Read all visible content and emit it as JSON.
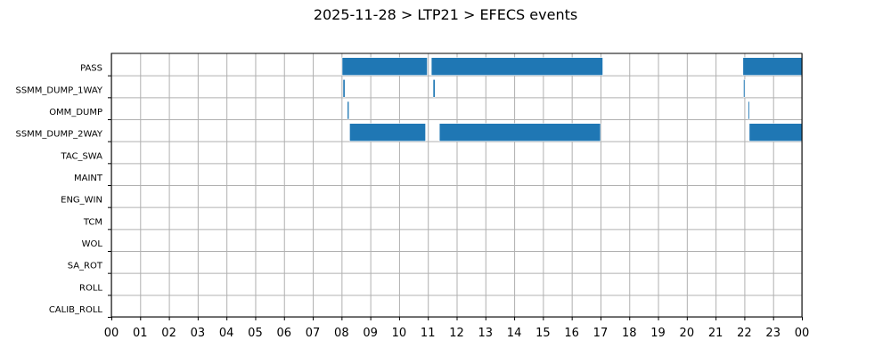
{
  "chart_data": {
    "type": "bar",
    "orientation": "horizontal",
    "title": "2025-11-28 > LTP21 > EFECS events",
    "xlabel": "",
    "ylabel": "",
    "xlim": [
      0,
      24
    ],
    "x_unit": "hour",
    "grid": true,
    "x_ticks": [
      "00",
      "01",
      "02",
      "03",
      "04",
      "05",
      "06",
      "07",
      "08",
      "09",
      "10",
      "11",
      "12",
      "13",
      "14",
      "15",
      "16",
      "17",
      "18",
      "19",
      "20",
      "21",
      "22",
      "23",
      "00"
    ],
    "categories": [
      "PASS",
      "SSMM_DUMP_1WAY",
      "OMM_DUMP",
      "SSMM_DUMP_2WAY",
      "TAC_SWA",
      "MAINT",
      "ENG_WIN",
      "TCM",
      "WOL",
      "SA_ROT",
      "ROLL",
      "CALIB_ROLL"
    ],
    "bar_color": "#1f77b4",
    "events": [
      {
        "category": "PASS",
        "start": 8.02,
        "end": 10.98
      },
      {
        "category": "PASS",
        "start": 11.12,
        "end": 17.08
      },
      {
        "category": "PASS",
        "start": 21.95,
        "end": 24.0
      },
      {
        "category": "SSMM_DUMP_1WAY",
        "start": 8.05,
        "end": 8.12
      },
      {
        "category": "SSMM_DUMP_1WAY",
        "start": 11.18,
        "end": 11.25
      },
      {
        "category": "SSMM_DUMP_1WAY",
        "start": 21.97,
        "end": 22.02
      },
      {
        "category": "OMM_DUMP",
        "start": 8.2,
        "end": 8.26
      },
      {
        "category": "OMM_DUMP",
        "start": 22.13,
        "end": 22.17
      },
      {
        "category": "SSMM_DUMP_2WAY",
        "start": 8.28,
        "end": 10.92
      },
      {
        "category": "SSMM_DUMP_2WAY",
        "start": 11.4,
        "end": 17.0
      },
      {
        "category": "SSMM_DUMP_2WAY",
        "start": 22.17,
        "end": 24.0
      }
    ]
  }
}
